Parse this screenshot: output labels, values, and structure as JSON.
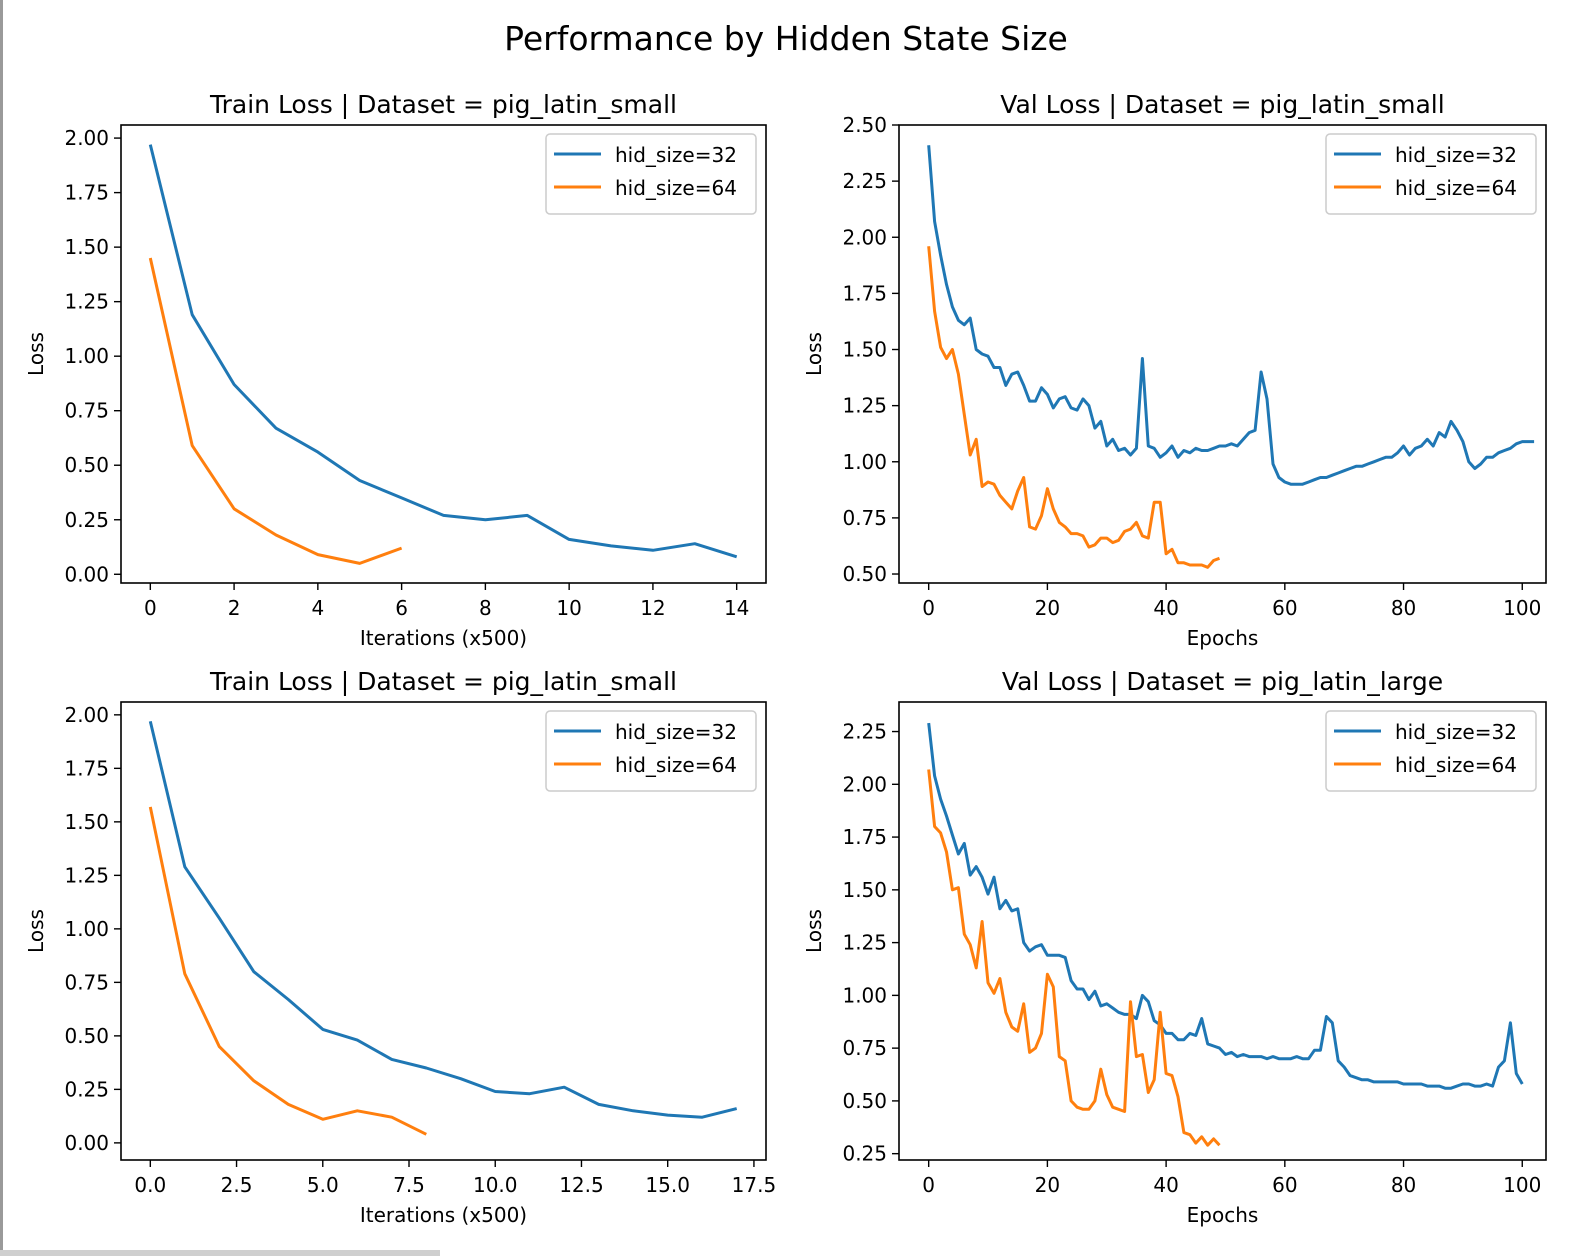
{
  "figure": {
    "title": "Performance by Hidden State Size"
  },
  "colors": {
    "series32": "#1f77b4",
    "series64": "#ff7f0e",
    "axis": "#000000",
    "legendBorder": "#cccccc"
  },
  "chart_data": [
    {
      "type": "line",
      "title": "Train Loss | Dataset = pig_latin_small",
      "xlabel": "Iterations (x500)",
      "ylabel": "Loss",
      "xlim": [
        -0.7,
        14.7
      ],
      "ylim": [
        -0.04,
        2.06
      ],
      "xticks": [
        0,
        2,
        4,
        6,
        8,
        10,
        12,
        14
      ],
      "xtick_labels": [
        "0",
        "2",
        "4",
        "6",
        "8",
        "10",
        "12",
        "14"
      ],
      "yticks": [
        0,
        0.25,
        0.5,
        0.75,
        1.0,
        1.25,
        1.5,
        1.75,
        2.0
      ],
      "ytick_labels": [
        "0.00",
        "0.25",
        "0.50",
        "0.75",
        "1.00",
        "1.25",
        "1.50",
        "1.75",
        "2.00"
      ],
      "legend_position": "top-right",
      "series": [
        {
          "name": "hid_size=32",
          "x": [
            0,
            1,
            2,
            3,
            4,
            5,
            6,
            7,
            8,
            9,
            10,
            11,
            12,
            13,
            14
          ],
          "values": [
            1.97,
            1.19,
            0.87,
            0.67,
            0.56,
            0.43,
            0.35,
            0.27,
            0.25,
            0.27,
            0.16,
            0.13,
            0.11,
            0.14,
            0.08
          ]
        },
        {
          "name": "hid_size=64",
          "x": [
            0,
            1,
            2,
            3,
            4,
            5,
            6
          ],
          "values": [
            1.45,
            0.59,
            0.3,
            0.18,
            0.09,
            0.05,
            0.12
          ]
        }
      ]
    },
    {
      "type": "line",
      "title": "Val Loss | Dataset = pig_latin_small",
      "xlabel": "Epochs",
      "ylabel": "Loss",
      "xlim": [
        -5,
        104
      ],
      "ylim": [
        0.46,
        2.5
      ],
      "xticks": [
        0,
        20,
        40,
        60,
        80,
        100
      ],
      "xtick_labels": [
        "0",
        "20",
        "40",
        "60",
        "80",
        "100"
      ],
      "yticks": [
        0.5,
        0.75,
        1.0,
        1.25,
        1.5,
        1.75,
        2.0,
        2.25,
        2.5
      ],
      "ytick_labels": [
        "0.50",
        "0.75",
        "1.00",
        "1.25",
        "1.50",
        "1.75",
        "2.00",
        "2.25",
        "2.50"
      ],
      "legend_position": "top-right",
      "series": [
        {
          "name": "hid_size=32",
          "values": [
            2.41,
            2.07,
            1.92,
            1.79,
            1.69,
            1.63,
            1.61,
            1.64,
            1.5,
            1.48,
            1.47,
            1.42,
            1.42,
            1.34,
            1.39,
            1.4,
            1.34,
            1.27,
            1.27,
            1.33,
            1.3,
            1.24,
            1.28,
            1.29,
            1.24,
            1.23,
            1.28,
            1.25,
            1.15,
            1.18,
            1.07,
            1.1,
            1.05,
            1.06,
            1.03,
            1.06,
            1.46,
            1.07,
            1.06,
            1.02,
            1.04,
            1.07,
            1.02,
            1.05,
            1.04,
            1.06,
            1.05,
            1.05,
            1.06,
            1.07,
            1.07,
            1.08,
            1.07,
            1.1,
            1.13,
            1.14,
            1.4,
            1.28,
            0.99,
            0.93,
            0.91,
            0.9,
            0.9,
            0.9,
            0.91,
            0.92,
            0.93,
            0.93,
            0.94,
            0.95,
            0.96,
            0.97,
            0.98,
            0.98,
            0.99,
            1.0,
            1.01,
            1.02,
            1.02,
            1.04,
            1.07,
            1.03,
            1.06,
            1.07,
            1.1,
            1.07,
            1.13,
            1.11,
            1.18,
            1.14,
            1.09,
            1.0,
            0.97,
            0.99,
            1.02,
            1.02,
            1.04,
            1.05,
            1.06,
            1.08,
            1.09,
            1.09,
            1.09
          ]
        },
        {
          "name": "hid_size=64",
          "values": [
            1.96,
            1.67,
            1.51,
            1.46,
            1.5,
            1.39,
            1.21,
            1.03,
            1.1,
            0.89,
            0.91,
            0.9,
            0.85,
            0.82,
            0.79,
            0.87,
            0.93,
            0.71,
            0.7,
            0.76,
            0.88,
            0.79,
            0.73,
            0.71,
            0.68,
            0.68,
            0.67,
            0.62,
            0.63,
            0.66,
            0.66,
            0.64,
            0.65,
            0.69,
            0.7,
            0.73,
            0.67,
            0.66,
            0.82,
            0.82,
            0.59,
            0.61,
            0.55,
            0.55,
            0.54,
            0.54,
            0.54,
            0.53,
            0.56,
            0.57
          ]
        }
      ]
    },
    {
      "type": "line",
      "title": "Train Loss | Dataset = pig_latin_small",
      "xlabel": "Iterations (x500)",
      "ylabel": "Loss",
      "xlim": [
        -0.85,
        17.85
      ],
      "ylim": [
        -0.08,
        2.06
      ],
      "xticks": [
        0,
        2.5,
        5,
        7.5,
        10,
        12.5,
        15,
        17.5
      ],
      "xtick_labels": [
        "0.0",
        "2.5",
        "5.0",
        "7.5",
        "10.0",
        "12.5",
        "15.0",
        "17.5"
      ],
      "yticks": [
        0,
        0.25,
        0.5,
        0.75,
        1.0,
        1.25,
        1.5,
        1.75,
        2.0
      ],
      "ytick_labels": [
        "0.00",
        "0.25",
        "0.50",
        "0.75",
        "1.00",
        "1.25",
        "1.50",
        "1.75",
        "2.00"
      ],
      "legend_position": "top-right",
      "series": [
        {
          "name": "hid_size=32",
          "x": [
            0,
            1,
            2,
            3,
            4,
            5,
            6,
            7,
            8,
            9,
            10,
            11,
            12,
            13,
            14,
            15,
            16,
            17
          ],
          "values": [
            1.97,
            1.29,
            1.05,
            0.8,
            0.67,
            0.53,
            0.48,
            0.39,
            0.35,
            0.3,
            0.24,
            0.23,
            0.26,
            0.18,
            0.15,
            0.13,
            0.12,
            0.16
          ]
        },
        {
          "name": "hid_size=64",
          "x": [
            0,
            1,
            2,
            3,
            4,
            5,
            6,
            7,
            8
          ],
          "values": [
            1.57,
            0.79,
            0.45,
            0.29,
            0.18,
            0.11,
            0.15,
            0.12,
            0.04
          ]
        }
      ]
    },
    {
      "type": "line",
      "title": "Val Loss | Dataset = pig_latin_large",
      "xlabel": "Epochs",
      "ylabel": "Loss",
      "xlim": [
        -5,
        104
      ],
      "ylim": [
        0.22,
        2.39
      ],
      "xticks": [
        0,
        20,
        40,
        60,
        80,
        100
      ],
      "xtick_labels": [
        "0",
        "20",
        "40",
        "60",
        "80",
        "100"
      ],
      "yticks": [
        0.25,
        0.5,
        0.75,
        1.0,
        1.25,
        1.5,
        1.75,
        2.0,
        2.25
      ],
      "ytick_labels": [
        "0.25",
        "0.50",
        "0.75",
        "1.00",
        "1.25",
        "1.50",
        "1.75",
        "2.00",
        "2.25"
      ],
      "legend_position": "top-right",
      "series": [
        {
          "name": "hid_size=32",
          "values": [
            2.29,
            2.04,
            1.93,
            1.85,
            1.76,
            1.67,
            1.72,
            1.57,
            1.61,
            1.56,
            1.48,
            1.56,
            1.41,
            1.45,
            1.4,
            1.41,
            1.25,
            1.21,
            1.23,
            1.24,
            1.19,
            1.19,
            1.19,
            1.18,
            1.07,
            1.03,
            1.03,
            0.98,
            1.02,
            0.95,
            0.96,
            0.94,
            0.92,
            0.91,
            0.91,
            0.89,
            1.0,
            0.97,
            0.88,
            0.86,
            0.82,
            0.82,
            0.79,
            0.79,
            0.82,
            0.81,
            0.89,
            0.77,
            0.76,
            0.75,
            0.72,
            0.73,
            0.71,
            0.72,
            0.71,
            0.71,
            0.71,
            0.7,
            0.71,
            0.7,
            0.7,
            0.7,
            0.71,
            0.7,
            0.7,
            0.74,
            0.74,
            0.9,
            0.87,
            0.69,
            0.66,
            0.62,
            0.61,
            0.6,
            0.6,
            0.59,
            0.59,
            0.59,
            0.59,
            0.59,
            0.58,
            0.58,
            0.58,
            0.58,
            0.57,
            0.57,
            0.57,
            0.56,
            0.56,
            0.57,
            0.58,
            0.58,
            0.57,
            0.57,
            0.58,
            0.57,
            0.66,
            0.69,
            0.87,
            0.63,
            0.58
          ]
        },
        {
          "name": "hid_size=64",
          "values": [
            2.07,
            1.8,
            1.77,
            1.68,
            1.5,
            1.51,
            1.29,
            1.24,
            1.13,
            1.35,
            1.06,
            1.01,
            1.08,
            0.92,
            0.85,
            0.83,
            0.96,
            0.73,
            0.75,
            0.82,
            1.1,
            1.04,
            0.71,
            0.69,
            0.5,
            0.47,
            0.46,
            0.46,
            0.5,
            0.65,
            0.53,
            0.47,
            0.46,
            0.45,
            0.97,
            0.71,
            0.72,
            0.54,
            0.6,
            0.92,
            0.63,
            0.62,
            0.52,
            0.35,
            0.34,
            0.3,
            0.33,
            0.29,
            0.32,
            0.29
          ]
        }
      ]
    }
  ]
}
